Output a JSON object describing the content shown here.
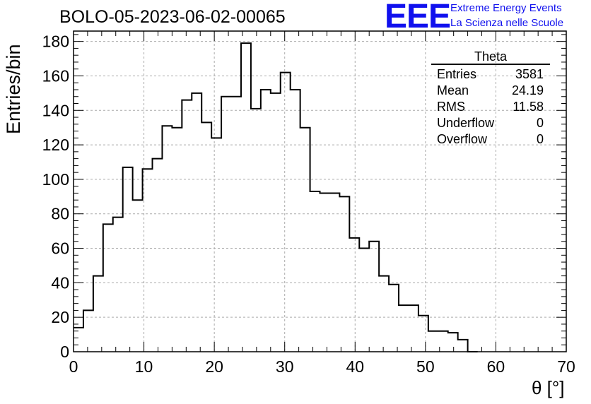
{
  "chart_data": {
    "type": "bar",
    "title": "BOLO-05-2023-06-02-00065",
    "xlabel": "θ [°]",
    "ylabel": "Entries/bin",
    "xlim": [
      0,
      70
    ],
    "ylim": [
      0,
      186
    ],
    "xticks": [
      0,
      10,
      20,
      30,
      40,
      50,
      60,
      70
    ],
    "yticks": [
      0,
      20,
      40,
      60,
      80,
      100,
      120,
      140,
      160,
      180
    ],
    "grid": true,
    "bin_width": 1.4,
    "values": [
      14,
      24,
      44,
      74,
      78,
      107,
      88,
      106,
      112,
      131,
      130,
      146,
      150,
      133,
      124,
      148,
      148,
      179,
      141,
      152,
      150,
      162,
      152,
      130,
      93,
      92,
      92,
      90,
      66,
      60,
      64,
      44,
      39,
      27,
      27,
      21,
      12,
      12,
      11,
      7,
      0,
      0,
      0,
      0,
      0,
      0,
      0,
      0,
      0,
      0
    ]
  },
  "stats": {
    "name": "Theta",
    "rows": [
      {
        "label": "Entries",
        "value": "3581"
      },
      {
        "label": "Mean",
        "value": "24.19"
      },
      {
        "label": "RMS",
        "value": "11.58"
      },
      {
        "label": "Underflow",
        "value": "0"
      },
      {
        "label": "Overflow",
        "value": "0"
      }
    ]
  },
  "brand": {
    "logo": "EEE",
    "line1": "Extreme Energy Events",
    "line2": "La Scienza nelle Scuole",
    "color": "#1010ee"
  }
}
